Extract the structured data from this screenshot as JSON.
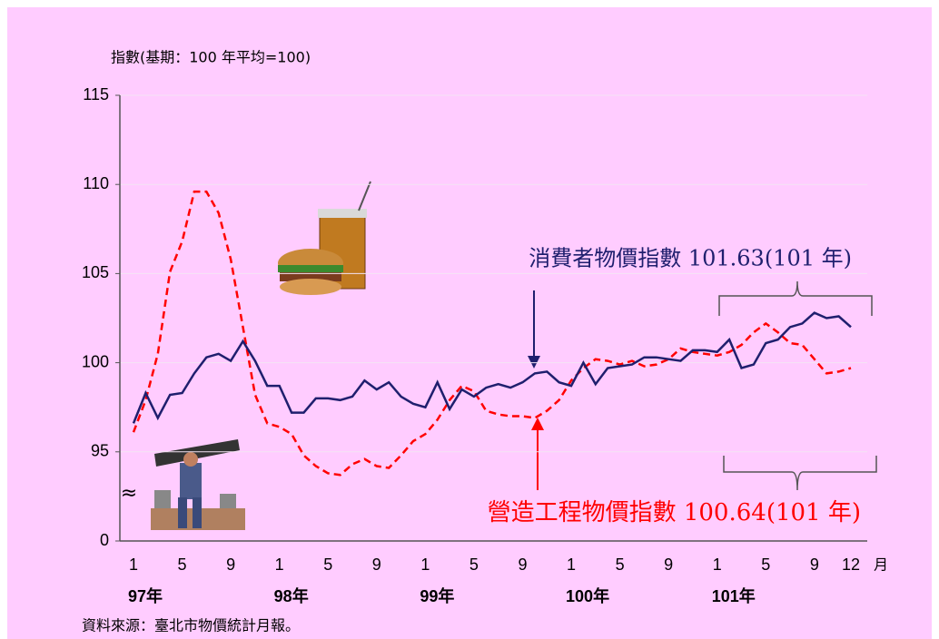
{
  "chart_data": {
    "type": "line",
    "y_label": "指數(基期：100 年平均=100)",
    "x_unit": "月",
    "categories": [
      "1",
      null,
      null,
      null,
      "5",
      null,
      null,
      null,
      "9",
      null,
      null,
      null,
      "1",
      null,
      null,
      null,
      "5",
      null,
      null,
      null,
      "9",
      null,
      null,
      null,
      "1",
      null,
      null,
      null,
      "5",
      null,
      null,
      null,
      "9",
      null,
      null,
      null,
      "1",
      null,
      null,
      null,
      "5",
      null,
      null,
      null,
      "9",
      null,
      null,
      null,
      "1",
      null,
      null,
      null,
      "5",
      null,
      null,
      null,
      "9",
      null,
      null,
      "12"
    ],
    "year_labels": [
      "97年",
      "98年",
      "99年",
      "100年",
      "101年"
    ],
    "series": [
      {
        "color": "#1f1f6e",
        "dashed": false,
        "values": [
          96.6,
          98.3,
          96.9,
          98.2,
          98.3,
          99.4,
          100.3,
          100.5,
          100.1,
          101.2,
          100.1,
          98.7,
          98.7,
          97.2,
          97.2,
          98.0,
          98.0,
          97.9,
          98.1,
          99.0,
          98.5,
          98.9,
          98.1,
          97.7,
          97.5,
          98.9,
          97.4,
          98.5,
          98.1,
          98.6,
          98.8,
          98.6,
          98.9,
          99.4,
          99.5,
          98.9,
          98.7,
          100.0,
          98.8,
          99.7,
          99.8,
          99.9,
          100.3,
          100.3,
          100.2,
          100.1,
          100.7,
          100.7,
          100.6,
          101.3,
          99.7,
          99.9,
          101.1,
          101.3,
          102.0,
          102.2,
          102.8,
          102.5,
          102.6,
          102.0
        ]
      },
      {
        "color": "#ff0000",
        "dashed": true,
        "values": [
          96.1,
          97.9,
          100.5,
          105.1,
          106.8,
          109.6,
          109.6,
          108.4,
          105.8,
          102.0,
          98.2,
          96.6,
          96.4,
          96.0,
          94.8,
          94.2,
          93.8,
          93.7,
          94.3,
          94.6,
          94.2,
          94.1,
          94.8,
          95.6,
          96.0,
          96.8,
          97.9,
          98.7,
          98.4,
          97.3,
          97.1,
          97.0,
          97.0,
          96.9,
          97.3,
          97.9,
          99.0,
          99.7,
          100.2,
          100.1,
          99.9,
          100.1,
          99.8,
          99.9,
          100.2,
          100.8,
          100.6,
          100.5,
          100.4,
          100.6,
          101.0,
          101.7,
          102.2,
          101.7,
          101.1,
          101.0,
          100.2,
          99.4,
          99.5,
          99.7
        ]
      }
    ],
    "ylim": [
      0,
      115
    ],
    "axis_break": [
      0,
      90
    ],
    "break_symbol": "≈",
    "yticks": [
      0,
      95,
      100,
      105,
      110,
      115
    ],
    "grid": true,
    "annotations": [
      "消費者物價指數 101.63(101 年)",
      "營造工程物價指數 100.64(101 年)"
    ],
    "source": "資料來源：臺北市物價統計月報。"
  }
}
